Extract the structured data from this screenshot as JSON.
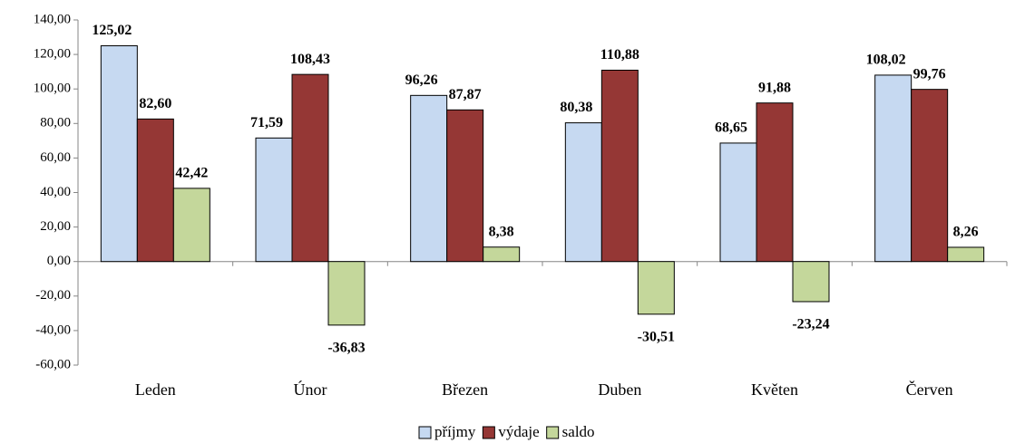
{
  "chart_data": {
    "type": "bar",
    "categories": [
      "Leden",
      "Únor",
      "Březen",
      "Duben",
      "Květen",
      "Červen"
    ],
    "series": [
      {
        "name": "příjmy",
        "color": "#c6d9f1",
        "values": [
          125.02,
          71.59,
          96.26,
          80.38,
          68.65,
          108.02
        ],
        "value_labels": [
          "125,02",
          "71,59",
          "96,26",
          "80,38",
          "68,65",
          "108,02"
        ]
      },
      {
        "name": "výdaje",
        "color": "#953735",
        "values": [
          82.6,
          108.43,
          87.87,
          110.88,
          91.88,
          99.76
        ],
        "value_labels": [
          "82,60",
          "108,43",
          "87,87",
          "110,88",
          "91,88",
          "99,76"
        ]
      },
      {
        "name": "saldo",
        "color": "#c4d79b",
        "values": [
          42.42,
          -36.83,
          8.38,
          -30.51,
          -23.24,
          8.26
        ],
        "value_labels": [
          "42,42",
          "-36,83",
          "8,38",
          "-30,51",
          "-23,24",
          "8,26"
        ]
      }
    ],
    "ylim": [
      -60,
      140
    ],
    "yticks": [
      {
        "value": -60,
        "label": "-60,00"
      },
      {
        "value": -40,
        "label": "-40,00"
      },
      {
        "value": -20,
        "label": "-20,00"
      },
      {
        "value": 0,
        "label": "0,00"
      },
      {
        "value": 20,
        "label": "20,00"
      },
      {
        "value": 40,
        "label": "40,00"
      },
      {
        "value": 60,
        "label": "60,00"
      },
      {
        "value": 80,
        "label": "80,00"
      },
      {
        "value": 100,
        "label": "100,00"
      },
      {
        "value": 120,
        "label": "120,00"
      },
      {
        "value": 140,
        "label": "140,00"
      }
    ],
    "grid": false,
    "legend": "bottom"
  }
}
